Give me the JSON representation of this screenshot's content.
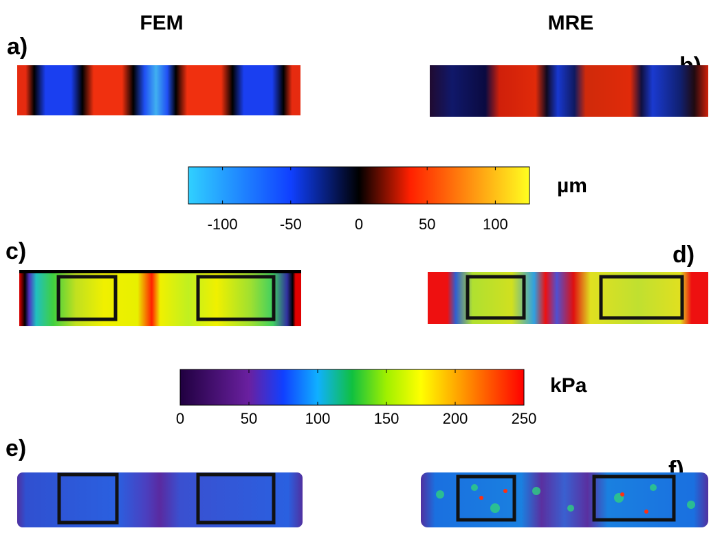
{
  "column_headers": [
    "FEM",
    "MRE"
  ],
  "panel_labels": [
    "a)",
    "b)",
    "c)",
    "d)",
    "e)",
    "f)"
  ],
  "colorbars": [
    {
      "unit": "µm",
      "lim": [
        -125,
        125
      ],
      "ticks": [
        -100,
        -50,
        0,
        50,
        100
      ]
    },
    {
      "unit": "kPa",
      "lim": [
        0,
        250
      ],
      "ticks": [
        0,
        50,
        100,
        150,
        200,
        250
      ]
    }
  ]
}
